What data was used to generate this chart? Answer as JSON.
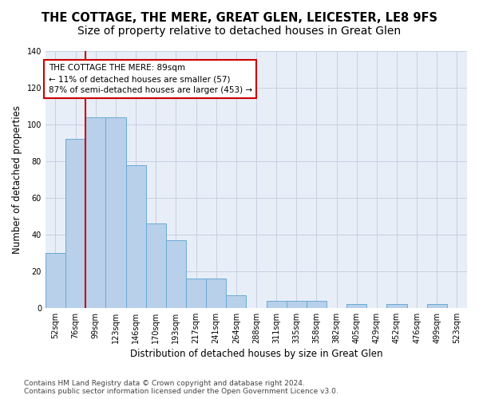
{
  "title": "THE COTTAGE, THE MERE, GREAT GLEN, LEICESTER, LE8 9FS",
  "subtitle": "Size of property relative to detached houses in Great Glen",
  "xlabel": "Distribution of detached houses by size in Great Glen",
  "ylabel": "Number of detached properties",
  "categories": [
    "52sqm",
    "76sqm",
    "99sqm",
    "123sqm",
    "146sqm",
    "170sqm",
    "193sqm",
    "217sqm",
    "241sqm",
    "264sqm",
    "288sqm",
    "311sqm",
    "335sqm",
    "358sqm",
    "382sqm",
    "405sqm",
    "429sqm",
    "452sqm",
    "476sqm",
    "499sqm",
    "523sqm"
  ],
  "values": [
    30,
    92,
    104,
    104,
    78,
    46,
    37,
    16,
    16,
    7,
    0,
    4,
    4,
    4,
    0,
    2,
    0,
    2,
    0,
    2,
    0
  ],
  "bar_color": "#b8d0ea",
  "bar_edge_color": "#6aaad4",
  "bar_edge_width": 0.7,
  "vline_x": 1.5,
  "vline_color": "#cc0000",
  "annotation_text": "THE COTTAGE THE MERE: 89sqm\n← 11% of detached houses are smaller (57)\n87% of semi-detached houses are larger (453) →",
  "ylim": [
    0,
    140
  ],
  "yticks": [
    0,
    20,
    40,
    60,
    80,
    100,
    120,
    140
  ],
  "bg_color": "#e8eef8",
  "grid_color": "#c8d0e0",
  "footer_line1": "Contains HM Land Registry data © Crown copyright and database right 2024.",
  "footer_line2": "Contains public sector information licensed under the Open Government Licence v3.0.",
  "title_fontsize": 10.5,
  "xlabel_fontsize": 8.5,
  "ylabel_fontsize": 8.5,
  "tick_fontsize": 7,
  "annotation_fontsize": 7.5,
  "footer_fontsize": 6.5
}
